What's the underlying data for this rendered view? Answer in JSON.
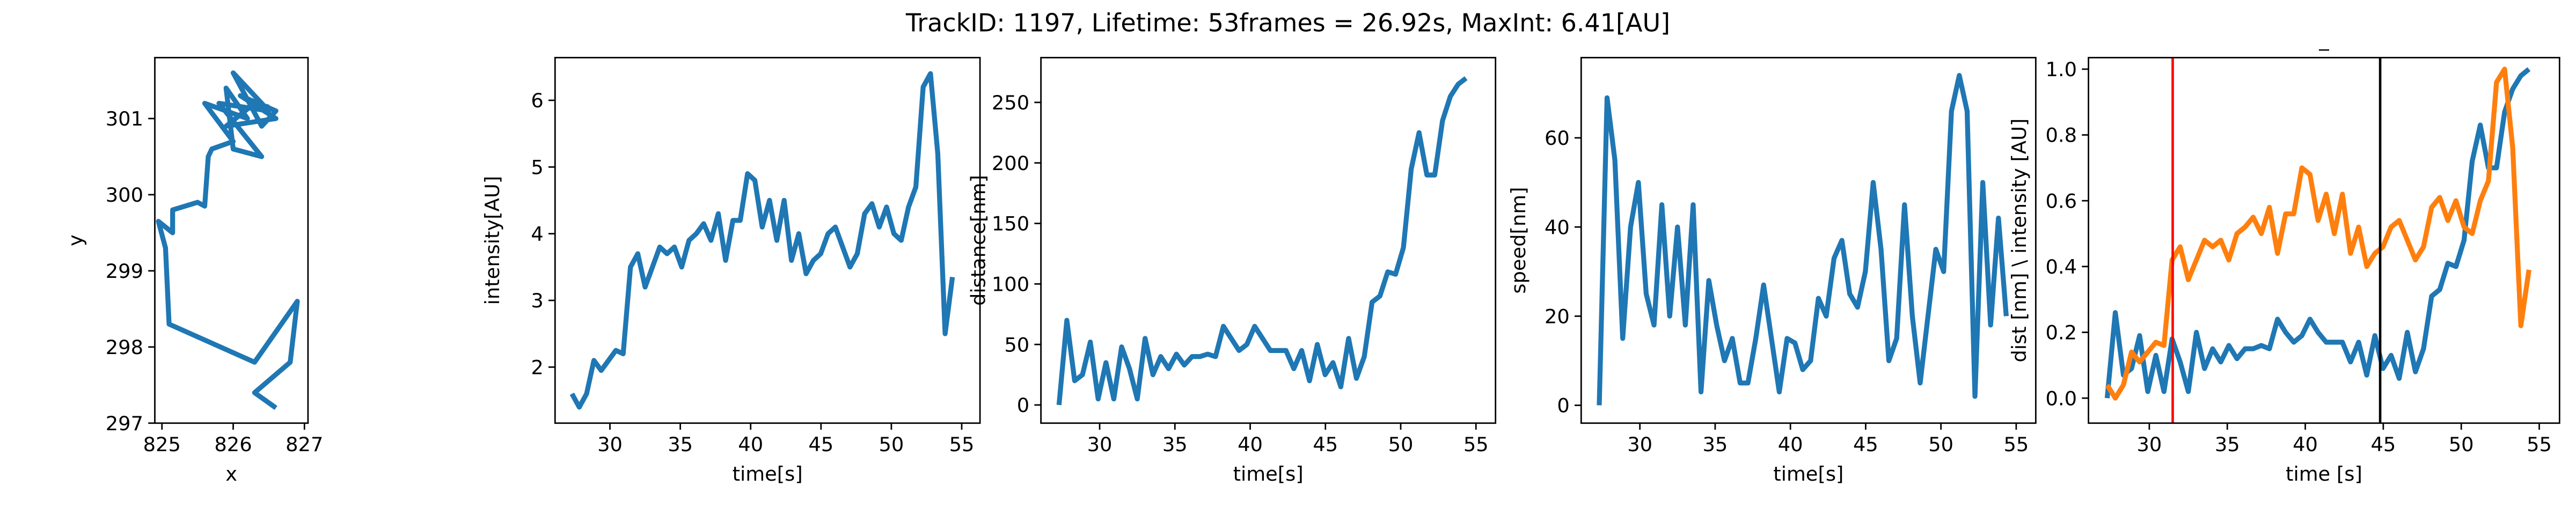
{
  "title": "TrackID: 1197, Lifetime: 53frames = 26.92s, MaxInt: 6.41[AU]",
  "chart_data": [
    {
      "type": "line",
      "xlabel": "x",
      "ylabel": "y",
      "xlim": [
        824.9,
        827.05
      ],
      "ylim": [
        297,
        301.8
      ],
      "xticks": [
        825,
        826,
        827
      ],
      "yticks": [
        297,
        298,
        299,
        300,
        301
      ],
      "x": [
        826.6,
        826.3,
        826.8,
        826.9,
        826.3,
        825.1,
        825.05,
        824.95,
        825.15,
        825.15,
        825.5,
        825.6,
        825.65,
        825.7,
        826.0,
        825.6,
        826.2,
        825.9,
        826.0,
        826.4,
        825.8,
        826.5,
        826.0,
        826.4,
        826.6,
        826.1,
        826.6,
        825.9,
        826.3,
        826.5
      ],
      "series": [
        {
          "color": "#1f77b4",
          "values": [
            297.2,
            297.4,
            297.8,
            298.6,
            297.8,
            298.3,
            299.3,
            299.65,
            299.5,
            299.8,
            299.9,
            299.85,
            300.5,
            300.6,
            300.7,
            301.2,
            301.0,
            301.4,
            300.6,
            300.5,
            301.2,
            301.1,
            301.6,
            300.9,
            301.1,
            301.3,
            301.0,
            300.9,
            301.2,
            301.15
          ]
        }
      ]
    },
    {
      "type": "line",
      "xlabel": "time[s]",
      "ylabel": "intensity[AU]",
      "xlim": [
        26.1,
        56.3
      ],
      "ylim": [
        1.16,
        6.64
      ],
      "xticks": [
        30,
        35,
        40,
        45,
        50,
        55
      ],
      "yticks": [
        2,
        3,
        4,
        5,
        6
      ],
      "x": [
        27.3,
        27.82,
        28.34,
        28.86,
        29.38,
        29.9,
        30.42,
        30.94,
        31.46,
        31.98,
        32.5,
        33.02,
        33.54,
        34.06,
        34.58,
        35.1,
        35.62,
        36.14,
        36.66,
        37.18,
        37.7,
        38.22,
        38.74,
        39.26,
        39.78,
        40.3,
        40.82,
        41.34,
        41.86,
        42.38,
        42.9,
        43.42,
        43.94,
        44.46,
        44.98,
        45.5,
        46.02,
        46.54,
        47.06,
        47.58,
        48.1,
        48.62,
        49.14,
        49.66,
        50.18,
        50.7,
        51.22,
        51.74,
        52.26,
        52.78,
        53.3,
        53.82,
        54.34
      ],
      "series": [
        {
          "color": "#1f77b4",
          "values": [
            1.6,
            1.4,
            1.6,
            2.1,
            1.95,
            2.1,
            2.25,
            2.2,
            3.5,
            3.7,
            3.2,
            3.5,
            3.8,
            3.7,
            3.8,
            3.5,
            3.9,
            4.0,
            4.15,
            3.9,
            4.3,
            3.6,
            4.2,
            4.2,
            4.9,
            4.8,
            4.1,
            4.5,
            3.9,
            4.5,
            3.6,
            4.0,
            3.4,
            3.6,
            3.7,
            4.0,
            4.1,
            3.8,
            3.5,
            3.7,
            4.3,
            4.45,
            4.1,
            4.4,
            4.0,
            3.9,
            4.4,
            4.7,
            6.2,
            6.4,
            5.2,
            2.5,
            3.35
          ]
        }
      ]
    },
    {
      "type": "line",
      "xlabel": "time[s]",
      "ylabel": "distance[nm]",
      "xlim": [
        26.1,
        56.3
      ],
      "ylim": [
        -15,
        287
      ],
      "xticks": [
        30,
        35,
        40,
        45,
        50,
        55
      ],
      "yticks": [
        0,
        50,
        100,
        150,
        200,
        250
      ],
      "x": [
        27.3,
        27.82,
        28.34,
        28.86,
        29.38,
        29.9,
        30.42,
        30.94,
        31.46,
        31.98,
        32.5,
        33.02,
        33.54,
        34.06,
        34.58,
        35.1,
        35.62,
        36.14,
        36.66,
        37.18,
        37.7,
        38.22,
        38.74,
        39.26,
        39.78,
        40.3,
        40.82,
        41.34,
        41.86,
        42.38,
        42.9,
        43.42,
        43.94,
        44.46,
        44.98,
        45.5,
        46.02,
        46.54,
        47.06,
        47.58,
        48.1,
        48.62,
        49.14,
        49.66,
        50.18,
        50.7,
        51.22,
        51.74,
        52.26,
        52.78,
        53.3,
        53.82,
        54.34
      ],
      "series": [
        {
          "color": "#1f77b4",
          "values": [
            0,
            70,
            20,
            25,
            52,
            5,
            35,
            5,
            48,
            30,
            5,
            55,
            25,
            40,
            30,
            42,
            33,
            40,
            40,
            42,
            40,
            65,
            55,
            45,
            50,
            65,
            55,
            45,
            45,
            45,
            30,
            45,
            20,
            50,
            25,
            35,
            15,
            55,
            22,
            40,
            85,
            90,
            110,
            108,
            130,
            195,
            225,
            190,
            190,
            235,
            255,
            265,
            270
          ]
        }
      ]
    },
    {
      "type": "line",
      "xlabel": "time[s]",
      "ylabel": "speed[nm]",
      "xlim": [
        26.1,
        56.3
      ],
      "ylim": [
        -4,
        78
      ],
      "xticks": [
        30,
        35,
        40,
        45,
        50,
        55
      ],
      "yticks": [
        0,
        20,
        40,
        60
      ],
      "x": [
        27.3,
        27.82,
        28.34,
        28.86,
        29.38,
        29.9,
        30.42,
        30.94,
        31.46,
        31.98,
        32.5,
        33.02,
        33.54,
        34.06,
        34.58,
        35.1,
        35.62,
        36.14,
        36.66,
        37.18,
        37.7,
        38.22,
        38.74,
        39.26,
        39.78,
        40.3,
        40.82,
        41.34,
        41.86,
        42.38,
        42.9,
        43.42,
        43.94,
        44.46,
        44.98,
        45.5,
        46.02,
        46.54,
        47.06,
        47.58,
        48.1,
        48.62,
        49.14,
        49.66,
        50.18,
        50.7,
        51.22,
        51.74,
        52.26,
        52.78,
        53.3,
        53.82,
        54.34
      ],
      "series": [
        {
          "color": "#1f77b4",
          "values": [
            0,
            69,
            55,
            15,
            40,
            50,
            25,
            18,
            45,
            20,
            40,
            18,
            45,
            3,
            28,
            18,
            10,
            15,
            5,
            5,
            15,
            27,
            15,
            3,
            15,
            14,
            8,
            10,
            24,
            20,
            33,
            37,
            25,
            22,
            30,
            50,
            35,
            10,
            15,
            45,
            20,
            5,
            20,
            35,
            30,
            66,
            74,
            66,
            2,
            50,
            18,
            42,
            20
          ]
        }
      ]
    },
    {
      "type": "line",
      "title": "_",
      "xlabel": "time [s]",
      "ylabel": "dist [nm] \\ intensity [AU]",
      "xlim": [
        26.1,
        56.3
      ],
      "ylim": [
        -0.076,
        1.035
      ],
      "xticks": [
        30,
        35,
        40,
        45,
        50,
        55
      ],
      "yticks": [
        {
          "value": 0,
          "label": "0.0"
        },
        {
          "value": 0.2,
          "label": "0.2"
        },
        {
          "value": 0.4,
          "label": "0.4"
        },
        {
          "value": 0.6,
          "label": "0.6"
        },
        {
          "value": 0.8,
          "label": "0.8"
        },
        {
          "value": 1,
          "label": "1.0"
        }
      ],
      "vlines": [
        {
          "value": 31.5,
          "color": "#ff0000"
        },
        {
          "value": 44.8,
          "color": "#000000"
        }
      ],
      "x": [
        27.3,
        27.82,
        28.34,
        28.86,
        29.38,
        29.9,
        30.42,
        30.94,
        31.46,
        31.98,
        32.5,
        33.02,
        33.54,
        34.06,
        34.58,
        35.1,
        35.62,
        36.14,
        36.66,
        37.18,
        37.7,
        38.22,
        38.74,
        39.26,
        39.78,
        40.3,
        40.82,
        41.34,
        41.86,
        42.38,
        42.9,
        43.42,
        43.94,
        44.46,
        44.98,
        45.5,
        46.02,
        46.54,
        47.06,
        47.58,
        48.1,
        48.62,
        49.14,
        49.66,
        50.18,
        50.7,
        51.22,
        51.74,
        52.26,
        52.78,
        53.3,
        53.82,
        54.34
      ],
      "series": [
        {
          "color": "#1f77b4",
          "values": [
            0,
            0.26,
            0.07,
            0.09,
            0.19,
            0.02,
            0.13,
            0.02,
            0.18,
            0.11,
            0.02,
            0.2,
            0.09,
            0.15,
            0.11,
            0.16,
            0.12,
            0.15,
            0.15,
            0.16,
            0.15,
            0.24,
            0.2,
            0.17,
            0.19,
            0.24,
            0.2,
            0.17,
            0.17,
            0.17,
            0.11,
            0.17,
            0.07,
            0.19,
            0.09,
            0.13,
            0.06,
            0.2,
            0.08,
            0.15,
            0.31,
            0.33,
            0.41,
            0.4,
            0.48,
            0.72,
            0.83,
            0.7,
            0.7,
            0.87,
            0.94,
            0.98,
            1
          ]
        },
        {
          "color": "#ff7f0e",
          "values": [
            0.04,
            0,
            0.04,
            0.14,
            0.11,
            0.14,
            0.17,
            0.16,
            0.42,
            0.46,
            0.36,
            0.42,
            0.48,
            0.46,
            0.48,
            0.42,
            0.5,
            0.52,
            0.55,
            0.5,
            0.58,
            0.44,
            0.56,
            0.56,
            0.7,
            0.68,
            0.54,
            0.62,
            0.5,
            0.62,
            0.44,
            0.52,
            0.4,
            0.44,
            0.46,
            0.52,
            0.54,
            0.48,
            0.42,
            0.46,
            0.58,
            0.61,
            0.54,
            0.6,
            0.52,
            0.5,
            0.6,
            0.66,
            0.96,
            1,
            0.76,
            0.22,
            0.39
          ]
        }
      ]
    }
  ]
}
